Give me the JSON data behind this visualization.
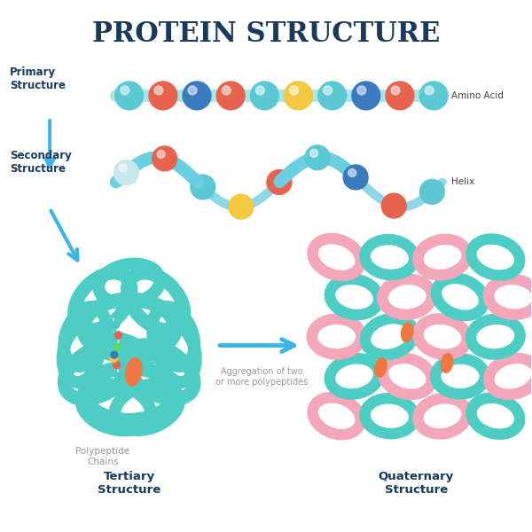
{
  "title": "PROTEIN STRUCTURE",
  "title_color": "#1a3a5c",
  "title_fontsize": 22,
  "bg_color": "#ffffff",
  "arrow_color": "#3ab5e5",
  "label_color_dark": "#1a3a5c",
  "label_color_gray": "#999999",
  "primary_label": "Primary\nStructure",
  "secondary_label": "Secondary\nStructure",
  "tertiary_label": "Tertiary\nStructure",
  "quaternary_label": "Quaternary\nStructure",
  "amino_acid_label": "Amino Acid",
  "helix_label": "Helix",
  "polypeptide_label": "Polypeptide\nChains",
  "aggregation_label": "Aggregation of two\nor more polypeptides",
  "teal_color": "#4ecdc4",
  "teal_light": "#a8e6e8",
  "pink_color": "#f4a7b9",
  "orange_color": "#f07840",
  "bead_colors_primary": [
    "#5bc8d4",
    "#e8634e",
    "#3a7bbf",
    "#e8634e",
    "#5bc8d4",
    "#f5c842",
    "#5bc8d4",
    "#3a7bbf",
    "#e8634e",
    "#5bc8d4"
  ],
  "bead_colors_helix": [
    "#c8e8ee",
    "#e8634e",
    "#5bc8d4",
    "#f5c842",
    "#e8634e",
    "#5bc8d4",
    "#3a7bbf",
    "#e8634e",
    "#5bc8d4"
  ]
}
